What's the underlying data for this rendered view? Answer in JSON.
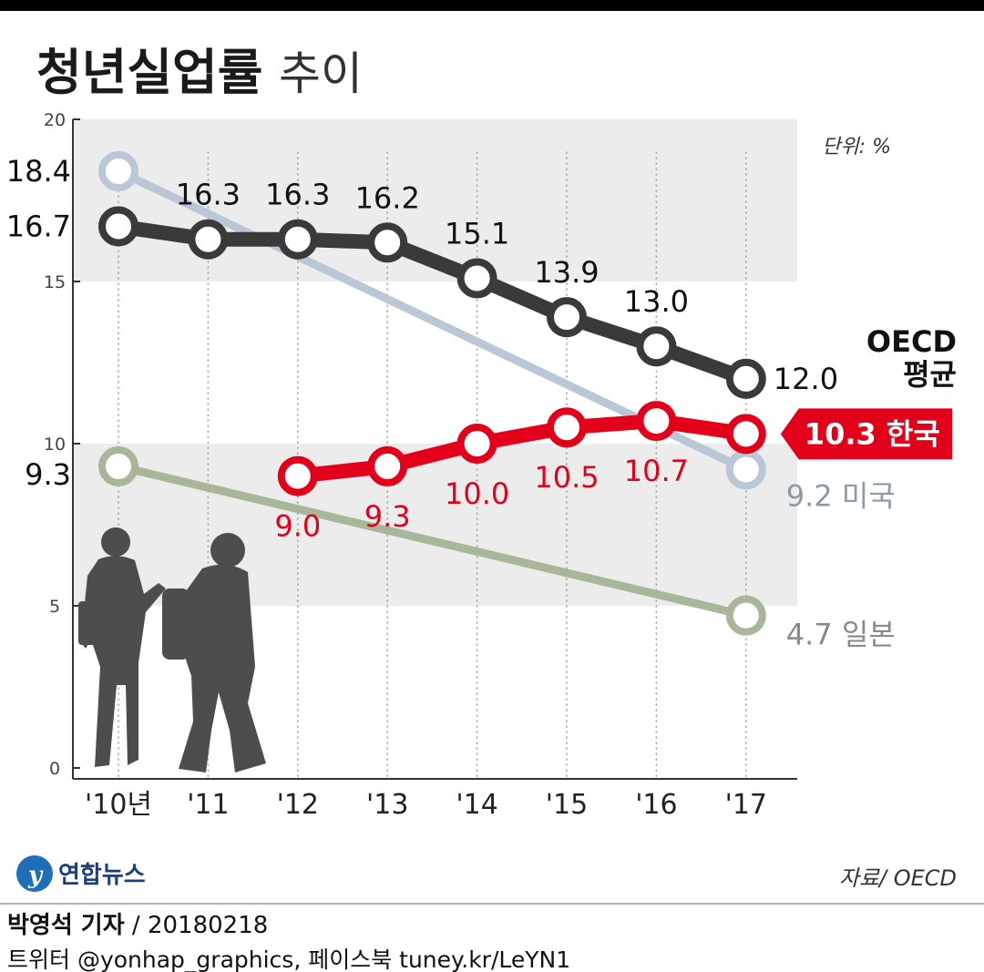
{
  "title": "청년실업률",
  "title_suffix": "추이",
  "unit": "단위: %",
  "source": "자료/ OECD",
  "logo_text": "연합뉴스",
  "credit": {
    "reporter": "박영석 기자",
    "date": " / 20180218"
  },
  "footer": "트위터 @yonhap_graphics, 페이스북 tuney.kr/LeYN1",
  "colors": {
    "oecd": "#3a3a3a",
    "korea": "#e2001a",
    "usa": "#b9c7d6",
    "japan": "#a8b79a",
    "band": "#ececec"
  },
  "chart_data": {
    "type": "line",
    "categories": [
      "'10년",
      "'11",
      "'12",
      "'13",
      "'14",
      "'15",
      "'16",
      "'17"
    ],
    "y_ticks": [
      "0",
      "5",
      "10",
      "15",
      "20"
    ],
    "ylim": [
      0,
      20
    ],
    "series": [
      {
        "name": "OECD 평균",
        "name_lines": [
          "OECD",
          "평균"
        ],
        "color": "#3a3a3a",
        "values": [
          16.7,
          16.3,
          16.3,
          16.2,
          15.1,
          13.9,
          13.0,
          12.0
        ],
        "labels": [
          "16.7",
          "16.3",
          "16.3",
          "16.2",
          "15.1",
          "13.9",
          "13.0",
          "12.0"
        ]
      },
      {
        "name": "한국",
        "color": "#e2001a",
        "values": [
          null,
          null,
          9.0,
          9.3,
          10.0,
          10.5,
          10.7,
          10.3
        ],
        "labels": [
          "",
          "",
          "9.0",
          "9.3",
          "10.0",
          "10.5",
          "10.7",
          "10.3 한국"
        ]
      },
      {
        "name": "미국",
        "color": "#b9c7d6",
        "values": [
          18.4,
          null,
          null,
          null,
          null,
          null,
          null,
          9.2
        ],
        "labels": [
          "18.4",
          "",
          "",
          "",
          "",
          "",
          "",
          "9.2 미국"
        ]
      },
      {
        "name": "일본",
        "color": "#a8b79a",
        "values": [
          9.3,
          null,
          null,
          null,
          null,
          null,
          null,
          4.7
        ],
        "labels": [
          "9.3",
          "",
          "",
          "",
          "",
          "",
          "",
          "4.7  일본"
        ]
      }
    ]
  }
}
